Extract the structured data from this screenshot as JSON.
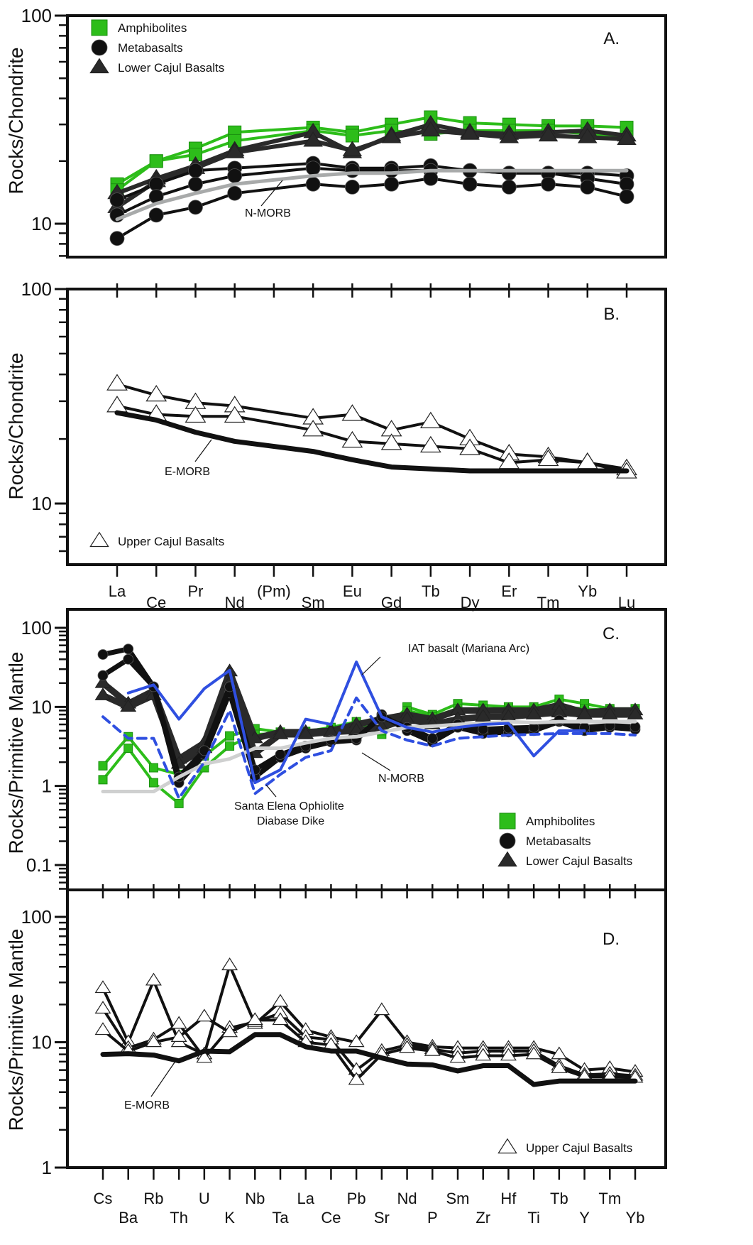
{
  "chart_data": [
    {
      "panel": "A.",
      "type": "line",
      "scale": "log",
      "ylabel": "Rocks/Chondrite",
      "ylim": [
        6,
        100
      ],
      "yticks": [
        10,
        100
      ],
      "ytick_labels": [
        "10",
        "100"
      ],
      "categories": [
        "La",
        "Ce",
        "Pr",
        "Nd",
        "(Pm)",
        "Sm",
        "Eu",
        "Gd",
        "Tb",
        "Dy",
        "Er",
        "Tm",
        "Yb",
        "Lu"
      ],
      "legend": {
        "position": "top-left",
        "entries": [
          {
            "label": "Amphibolites",
            "marker": "square",
            "color": "#2dbd1a"
          },
          {
            "label": "Metabasalts",
            "marker": "circle",
            "color": "#111111"
          },
          {
            "label": "Lower Cajul Basalts",
            "marker": "triangle",
            "color": "#2a2a2a"
          }
        ]
      },
      "annotations": [
        {
          "text": "N-MORB",
          "target": "N-MORB"
        }
      ],
      "series": [
        {
          "name": "Amphibolite 1",
          "group": "Amphibolites",
          "values": [
            15.5,
            20,
            23,
            27.5,
            null,
            29,
            27.5,
            30,
            32.5,
            30.5,
            30,
            29.5,
            29.5,
            29
          ]
        },
        {
          "name": "Amphibolite 2",
          "group": "Amphibolites",
          "values": [
            14.5,
            20,
            21.5,
            25,
            null,
            28,
            26.5,
            28,
            27,
            28,
            28,
            28,
            27,
            26
          ]
        },
        {
          "name": "Lower Cajul 1",
          "group": "Lower Cajul Basalts",
          "values": [
            14,
            16.5,
            19,
            22.5,
            null,
            27.5,
            22,
            26.5,
            30,
            27.5,
            27,
            27.5,
            28,
            26.5
          ]
        },
        {
          "name": "Lower Cajul 2",
          "group": "Lower Cajul Basalts",
          "values": [
            12,
            16,
            18.5,
            22,
            null,
            25,
            22.5,
            26,
            28,
            27,
            26,
            26.5,
            26,
            25.5
          ]
        },
        {
          "name": "Metabasalt 1",
          "group": "Metabasalts",
          "values": [
            13,
            15.5,
            18,
            18.5,
            null,
            19.5,
            18.5,
            18.5,
            19,
            18,
            17.5,
            17.5,
            17.5,
            17
          ]
        },
        {
          "name": "Metabasalt 2",
          "group": "Metabasalts",
          "values": [
            11,
            13.5,
            15.5,
            17,
            null,
            18.5,
            18,
            18,
            18,
            18,
            17.5,
            17.5,
            16.5,
            15.5
          ]
        },
        {
          "name": "Metabasalt 3",
          "group": "Metabasalts",
          "values": [
            8.5,
            11,
            12,
            14,
            null,
            15.5,
            15,
            15.5,
            16.5,
            15.5,
            15,
            15.5,
            15,
            13.5
          ]
        },
        {
          "name": "N-MORB",
          "group": "reference",
          "values": [
            10.5,
            12.5,
            14,
            15.5,
            null,
            17,
            17.5,
            17.5,
            18,
            18,
            18,
            18,
            18,
            18
          ]
        }
      ]
    },
    {
      "panel": "B.",
      "type": "line",
      "scale": "log",
      "ylabel": "Rocks/Chondrite",
      "ylim": [
        5,
        100
      ],
      "yticks": [
        10,
        100
      ],
      "ytick_labels": [
        "10",
        "100"
      ],
      "categories": [
        "La",
        "Ce",
        "Pr",
        "Nd",
        "(Pm)",
        "Sm",
        "Eu",
        "Gd",
        "Tb",
        "Dy",
        "Er",
        "Tm",
        "Yb",
        "Lu"
      ],
      "legend": {
        "position": "bottom-left",
        "entries": [
          {
            "label": "Upper Cajul Basalts",
            "marker": "open-triangle",
            "color": "#ffffff"
          }
        ]
      },
      "annotations": [
        {
          "text": "E-MORB",
          "target": "E-MORB"
        }
      ],
      "series": [
        {
          "name": "Upper Cajul 1",
          "group": "Upper Cajul Basalts",
          "values": [
            36,
            32,
            29.5,
            28.5,
            null,
            25,
            26,
            22,
            24,
            20,
            17,
            16.5,
            15.5,
            14.5
          ]
        },
        {
          "name": "Upper Cajul 2",
          "group": "Upper Cajul Basalts",
          "values": [
            28.5,
            26,
            25.5,
            25.5,
            null,
            22,
            19.5,
            19,
            18.5,
            18,
            15.5,
            16,
            15.5,
            14
          ]
        },
        {
          "name": "E-MORB",
          "group": "reference",
          "values": [
            26.5,
            24.5,
            21.5,
            19.5,
            null,
            17.5,
            16,
            14.8,
            14.5,
            14.2,
            14.2,
            14.2,
            14.2,
            14.2
          ]
        }
      ]
    },
    {
      "panel": "C.",
      "type": "line",
      "scale": "log",
      "ylabel": "Rocks/Primitive Mantle",
      "ylim": [
        0.05,
        150
      ],
      "yticks": [
        0.1,
        1,
        10,
        100
      ],
      "ytick_labels": [
        "0.1",
        "1",
        "10",
        "100"
      ],
      "categories": [
        "Cs",
        "Ba",
        "Rb",
        "Th",
        "U",
        "K",
        "Nb",
        "Ta",
        "La",
        "Ce",
        "Pb",
        "Sr",
        "Nd",
        "P",
        "Sm",
        "Zr",
        "Hf",
        "Ti",
        "Tb",
        "Y",
        "Tm",
        "Yb"
      ],
      "legend": {
        "position": "bottom-right",
        "entries": [
          {
            "label": "Amphibolites",
            "marker": "square",
            "color": "#2dbd1a"
          },
          {
            "label": "Metabasalts",
            "marker": "circle",
            "color": "#111111"
          },
          {
            "label": "Lower Cajul Basalts",
            "marker": "triangle",
            "color": "#2a2a2a"
          }
        ]
      },
      "annotations": [
        {
          "text": "IAT basalt (Mariana Arc)",
          "target": "IAT basalt"
        },
        {
          "text": "N-MORB",
          "target": "N-MORB"
        },
        {
          "text": "Santa Elena Ophiolite",
          "target": "Santa Elena Ophiolite Diabase Dike"
        },
        {
          "text": "Diabase Dike",
          "target": "Santa Elena Ophiolite Diabase Dike"
        }
      ],
      "series": [
        {
          "name": "Amphibolite 1",
          "group": "Amphibolites",
          "values": [
            1.8,
            4.2,
            1.7,
            1.4,
            2.4,
            4.3,
            5.3,
            4.8,
            4.9,
            5.5,
            6.5,
            4.5,
            10,
            8,
            11,
            10.5,
            10,
            10,
            12.5,
            11,
            9.5,
            9.5
          ]
        },
        {
          "name": "Amphibolite 2",
          "group": "Amphibolites",
          "values": [
            1.2,
            3,
            1.1,
            0.6,
            1.7,
            3.2,
            4.5,
            4.6,
            4.8,
            5,
            5.5,
            5,
            9,
            7.5,
            9.5,
            9.5,
            9,
            9,
            10,
            9.5,
            9,
            9
          ]
        },
        {
          "name": "Lower Cajul 1",
          "group": "Lower Cajul Basalts",
          "values": [
            20,
            11,
            16,
            2.2,
            3.5,
            28,
            4,
            4.8,
            4.8,
            5,
            6,
            7,
            8,
            7,
            9,
            9,
            9,
            9,
            10.5,
            8.5,
            9,
            9
          ]
        },
        {
          "name": "Lower Cajul 2",
          "group": "Lower Cajul Basalts",
          "values": [
            14,
            10,
            14,
            1.9,
            3,
            20,
            2.6,
            4.5,
            4.5,
            4.8,
            5,
            5.5,
            7,
            6,
            7,
            7.5,
            7.5,
            8,
            8.5,
            8,
            8,
            8
          ]
        },
        {
          "name": "Metabasalt 1",
          "group": "Metabasalts",
          "values": [
            46,
            54,
            18,
            1.1,
            2.5,
            15,
            1.3,
            2.3,
            3,
            3.6,
            3.8,
            8,
            5,
            3.6,
            5.5,
            4.6,
            4.8,
            5,
            6.5,
            5,
            5.5,
            5.2
          ]
        },
        {
          "name": "Metabasalt 2",
          "group": "Metabasalts",
          "values": [
            25,
            40,
            18,
            1.3,
            2.8,
            18,
            1.6,
            2.5,
            3.2,
            3.8,
            4,
            7.5,
            5.5,
            4,
            6,
            5.2,
            5.4,
            5.5,
            6.8,
            5.5,
            5.8,
            5.6
          ]
        },
        {
          "name": "N-MORB",
          "group": "reference",
          "values": [
            0.85,
            0.85,
            0.85,
            1.3,
            1.9,
            2.2,
            3,
            3,
            3.5,
            4,
            4.2,
            4.8,
            5.5,
            5.7,
            6,
            6.2,
            6.5,
            6.3,
            6.5,
            6.5,
            6.5,
            6.5
          ]
        },
        {
          "name": "IAT basalt (Mariana Arc)",
          "group": "reference",
          "color": "#2f4fe0",
          "values": [
            null,
            15,
            19,
            7,
            17,
            29,
            1.1,
            1.6,
            7,
            6,
            37,
            7.5,
            5.5,
            4.8,
            5.5,
            6,
            6.2,
            2.4,
            5,
            5,
            null,
            null
          ]
        },
        {
          "name": "Santa Elena Ophiolite Diabase Dike",
          "group": "reference",
          "color": "#2f4fe0",
          "dashed": true,
          "values": [
            7.5,
            4,
            4,
            0.7,
            2,
            9,
            0.8,
            1.4,
            2.3,
            2.8,
            13,
            5,
            3.8,
            3.2,
            4,
            4.2,
            4.4,
            4.5,
            4.6,
            4.6,
            4.6,
            4.4
          ]
        }
      ]
    },
    {
      "panel": "D.",
      "type": "line",
      "scale": "log",
      "ylabel": "Rocks/Primitive Mantle",
      "ylim": [
        1,
        100
      ],
      "yticks": [
        1,
        10,
        100
      ],
      "ytick_labels": [
        "1",
        "10",
        "100"
      ],
      "categories": [
        "Cs",
        "Ba",
        "Rb",
        "Th",
        "U",
        "K",
        "Nb",
        "Ta",
        "La",
        "Ce",
        "Pb",
        "Sr",
        "Nd",
        "P",
        "Sm",
        "Zr",
        "Hf",
        "Ti",
        "Tb",
        "Y",
        "Tm",
        "Yb"
      ],
      "legend": {
        "position": "bottom-right",
        "entries": [
          {
            "label": "Upper Cajul Basalts",
            "marker": "open-triangle",
            "color": "#ffffff"
          }
        ]
      },
      "annotations": [
        {
          "text": "E-MORB",
          "target": "E-MORB"
        }
      ],
      "series": [
        {
          "name": "Upper Cajul 1",
          "group": "Upper Cajul Basalts",
          "values": [
            27,
            10,
            31,
            10,
            8,
            41,
            14,
            21,
            12.5,
            11,
            10,
            18,
            10,
            9.2,
            9,
            9,
            9,
            9,
            8,
            6,
            6.2,
            5.8
          ]
        },
        {
          "name": "Upper Cajul 2",
          "group": "Upper Cajul Basalts",
          "values": [
            18.5,
            9,
            10.5,
            14,
            7.5,
            13,
            14.5,
            17,
            11,
            10.5,
            6,
            8.5,
            9.5,
            8.8,
            8.2,
            8.5,
            8.5,
            8.5,
            6.5,
            5.5,
            5.6,
            5.4
          ]
        },
        {
          "name": "Upper Cajul 3",
          "group": "Upper Cajul Basalts",
          "values": [
            12.5,
            8.5,
            10,
            11,
            16,
            12,
            15,
            15,
            10,
            9.5,
            5,
            8,
            9,
            8.5,
            7.5,
            7.8,
            7.8,
            8,
            6.2,
            5.3,
            5.3,
            5.2
          ]
        },
        {
          "name": "E-MORB",
          "group": "reference",
          "values": [
            8,
            8.1,
            7.9,
            7.1,
            8.5,
            8.4,
            11.5,
            11.5,
            9.2,
            8.5,
            8.5,
            7.5,
            6.7,
            6.6,
            5.9,
            6.5,
            6.5,
            4.6,
            4.9,
            4.9,
            4.9,
            4.9
          ]
        }
      ]
    }
  ]
}
